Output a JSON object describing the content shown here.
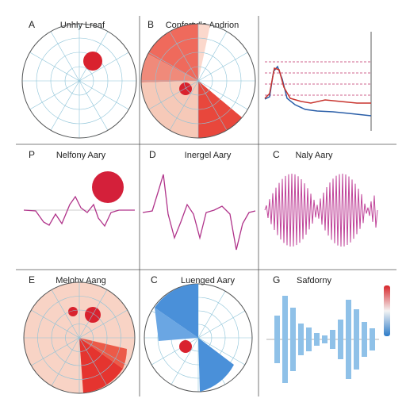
{
  "panels": [
    {
      "letter": "A",
      "title": "Unhly Lreaf"
    },
    {
      "letter": "B",
      "title": "Conforty'le Andrion"
    },
    {
      "letter": "P",
      "title": "Nelfony Aary"
    },
    {
      "letter": "D",
      "title": "Inergel Aary"
    },
    {
      "letter": "C",
      "title": "Naly Aary"
    },
    {
      "letter": "E",
      "title": "Melohy Aang"
    },
    {
      "letter": "C",
      "title": "Luenged Aary"
    },
    {
      "letter": "G",
      "title": "Safdorny"
    }
  ]
}
